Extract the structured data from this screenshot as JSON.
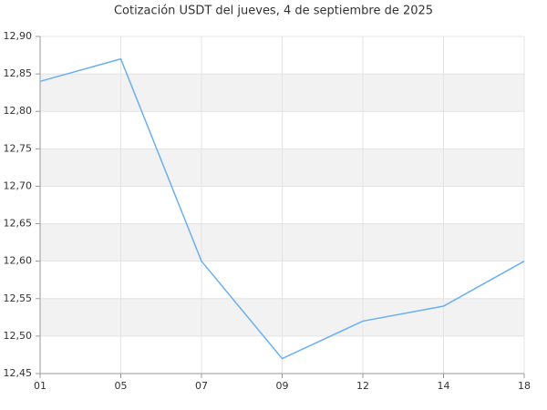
{
  "chart_data": {
    "type": "line",
    "title": "Cotización USDT del jueves, 4 de septiembre de 2025",
    "categories": [
      "01",
      "05",
      "07",
      "09",
      "12",
      "14",
      "18"
    ],
    "series": [
      {
        "color": "#6ab0f0",
        "values": [
          12.84,
          12.87,
          12.6,
          12.47,
          12.52,
          12.54,
          12.6
        ]
      }
    ],
    "ylim": [
      12.45,
      12.9
    ],
    "yticks": [
      {
        "value": 12.45,
        "label": "12,45"
      },
      {
        "value": 12.5,
        "label": "12,50"
      },
      {
        "value": 12.55,
        "label": "12,55"
      },
      {
        "value": 12.6,
        "label": "12,60"
      },
      {
        "value": 12.65,
        "label": "12,65"
      },
      {
        "value": 12.7,
        "label": "12,70"
      },
      {
        "value": 12.75,
        "label": "12,75"
      },
      {
        "value": 12.8,
        "label": "12,80"
      },
      {
        "value": 12.85,
        "label": "12,85"
      },
      {
        "value": 12.9,
        "label": "12,90"
      }
    ],
    "grid": true
  }
}
